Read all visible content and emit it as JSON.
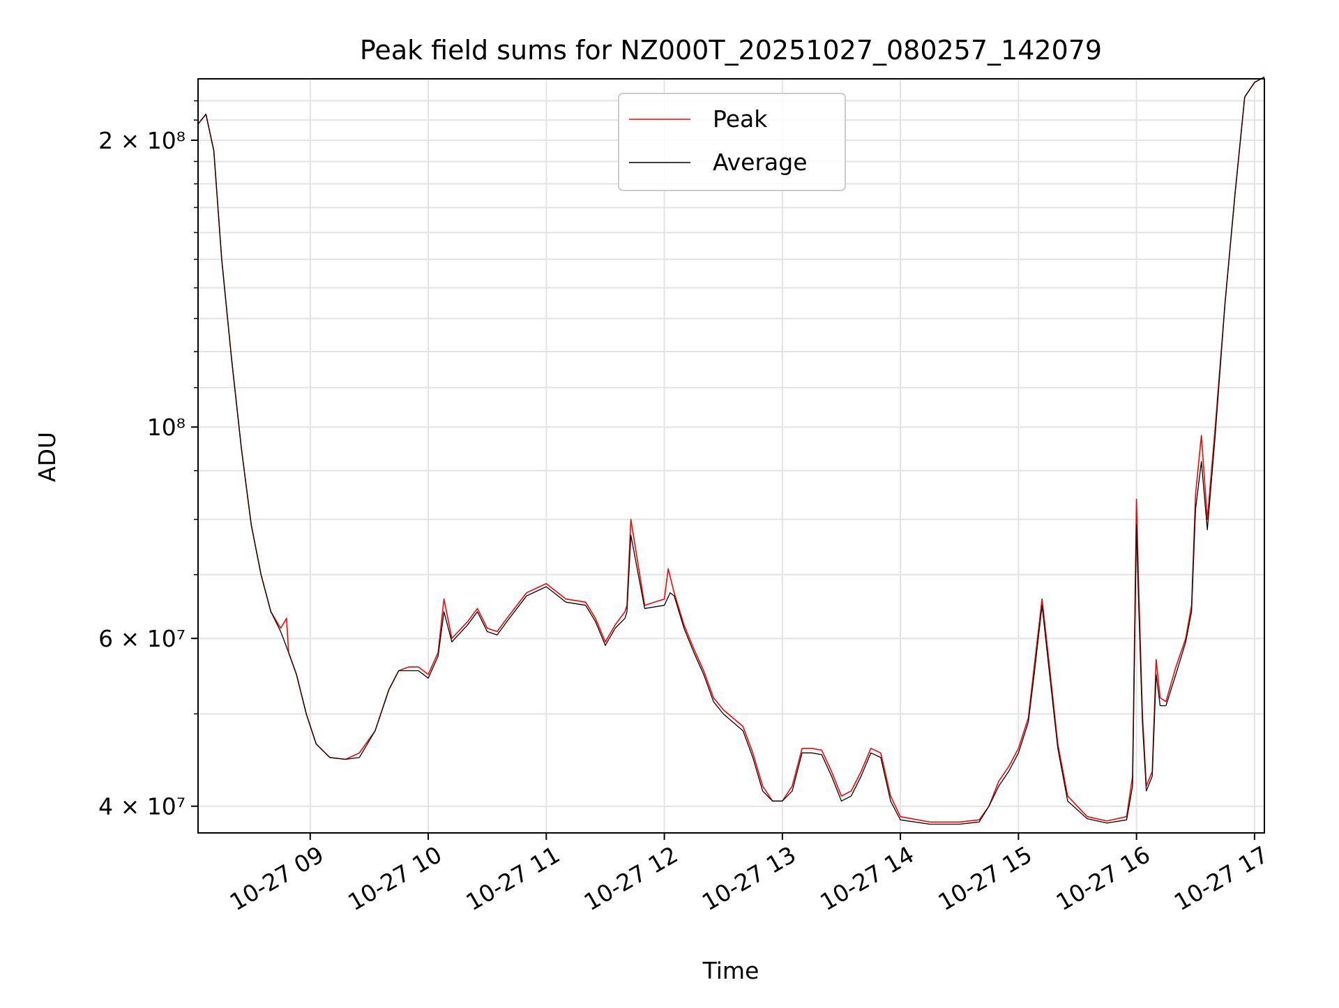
{
  "chart_data": {
    "type": "line",
    "title": "Peak field sums for NZ000T_20251027_080257_142079",
    "xlabel": "Time",
    "ylabel": "ADU",
    "yscale": "log",
    "ylim": [
      37500000,
      232000000
    ],
    "xlim": [
      "2025-10-27 08:03",
      "2025-10-27 17:05"
    ],
    "x_ticks": [
      "10-27 09",
      "10-27 10",
      "10-27 11",
      "10-27 12",
      "10-27 13",
      "10-27 14",
      "10-27 15",
      "10-27 16",
      "10-27 17"
    ],
    "y_tick_labels": [
      "4 × 10⁷",
      "6 × 10⁷",
      "10⁸",
      "2 × 10⁸"
    ],
    "y_tick_values": [
      40000000,
      60000000,
      100000000,
      200000000
    ],
    "grid": true,
    "legend_position": "upper center",
    "series": [
      {
        "name": "Peak",
        "color": "#ff0000",
        "x": [
          "2025-10-27 08:03",
          "2025-10-27 08:07",
          "2025-10-27 08:11",
          "2025-10-27 08:15",
          "2025-10-27 08:20",
          "2025-10-27 08:25",
          "2025-10-27 08:30",
          "2025-10-27 08:35",
          "2025-10-27 08:40",
          "2025-10-27 08:45",
          "2025-10-27 08:48",
          "2025-10-27 08:49",
          "2025-10-27 08:53",
          "2025-10-27 08:58",
          "2025-10-27 09:03",
          "2025-10-27 09:10",
          "2025-10-27 09:18",
          "2025-10-27 09:25",
          "2025-10-27 09:33",
          "2025-10-27 09:40",
          "2025-10-27 09:45",
          "2025-10-27 09:50",
          "2025-10-27 09:55",
          "2025-10-27 10:00",
          "2025-10-27 10:05",
          "2025-10-27 10:08",
          "2025-10-27 10:12",
          "2025-10-27 10:20",
          "2025-10-27 10:25",
          "2025-10-27 10:30",
          "2025-10-27 10:35",
          "2025-10-27 10:40",
          "2025-10-27 10:50",
          "2025-10-27 11:00",
          "2025-10-27 11:10",
          "2025-10-27 11:20",
          "2025-10-27 11:25",
          "2025-10-27 11:30",
          "2025-10-27 11:35",
          "2025-10-27 11:40",
          "2025-10-27 11:41",
          "2025-10-27 11:43",
          "2025-10-27 11:50",
          "2025-10-27 12:00",
          "2025-10-27 12:02",
          "2025-10-27 12:05",
          "2025-10-27 12:10",
          "2025-10-27 12:15",
          "2025-10-27 12:20",
          "2025-10-27 12:25",
          "2025-10-27 12:30",
          "2025-10-27 12:40",
          "2025-10-27 12:45",
          "2025-10-27 12:50",
          "2025-10-27 12:55",
          "2025-10-27 13:00",
          "2025-10-27 13:05",
          "2025-10-27 13:10",
          "2025-10-27 13:15",
          "2025-10-27 13:20",
          "2025-10-27 13:25",
          "2025-10-27 13:30",
          "2025-10-27 13:35",
          "2025-10-27 13:40",
          "2025-10-27 13:45",
          "2025-10-27 13:50",
          "2025-10-27 13:55",
          "2025-10-27 14:00",
          "2025-10-27 14:15",
          "2025-10-27 14:30",
          "2025-10-27 14:40",
          "2025-10-27 14:45",
          "2025-10-27 14:50",
          "2025-10-27 14:55",
          "2025-10-27 15:00",
          "2025-10-27 15:05",
          "2025-10-27 15:08",
          "2025-10-27 15:12",
          "2025-10-27 15:15",
          "2025-10-27 15:20",
          "2025-10-27 15:25",
          "2025-10-27 15:35",
          "2025-10-27 15:45",
          "2025-10-27 15:55",
          "2025-10-27 15:58",
          "2025-10-27 16:00",
          "2025-10-27 16:01",
          "2025-10-27 16:03",
          "2025-10-27 16:05",
          "2025-10-27 16:08",
          "2025-10-27 16:10",
          "2025-10-27 16:12",
          "2025-10-27 16:15",
          "2025-10-27 16:20",
          "2025-10-27 16:25",
          "2025-10-27 16:28",
          "2025-10-27 16:30",
          "2025-10-27 16:33",
          "2025-10-27 16:36",
          "2025-10-27 16:40",
          "2025-10-27 16:45",
          "2025-10-27 16:50",
          "2025-10-27 16:55",
          "2025-10-27 17:00",
          "2025-10-27 17:05"
        ],
        "values": [
          208000000,
          213000000,
          195000000,
          150000000,
          118000000,
          95000000,
          79000000,
          70000000,
          64000000,
          61500000,
          63000000,
          58000000,
          55000000,
          50000000,
          46500000,
          45000000,
          44800000,
          45500000,
          48000000,
          53000000,
          55500000,
          56000000,
          56000000,
          55000000,
          58000000,
          66000000,
          60000000,
          62500000,
          64500000,
          61500000,
          61000000,
          63000000,
          67000000,
          68500000,
          66000000,
          65500000,
          63000000,
          59500000,
          62000000,
          64000000,
          65000000,
          80000000,
          65000000,
          66000000,
          71000000,
          67000000,
          62000000,
          58500000,
          55500000,
          52000000,
          50500000,
          48500000,
          45500000,
          42000000,
          40500000,
          40500000,
          42000000,
          46000000,
          46000000,
          45800000,
          43500000,
          41000000,
          41500000,
          43500000,
          46000000,
          45500000,
          41000000,
          39000000,
          38500000,
          38500000,
          38700000,
          40000000,
          42500000,
          44000000,
          46000000,
          49500000,
          56000000,
          66000000,
          58000000,
          46500000,
          41000000,
          39000000,
          38600000,
          39000000,
          43000000,
          84000000,
          69000000,
          50000000,
          42000000,
          43500000,
          57000000,
          52000000,
          51500000,
          56000000,
          60000000,
          65000000,
          85000000,
          98000000,
          80000000,
          100000000,
          135000000,
          175000000,
          222000000,
          230000000,
          233000000
        ]
      },
      {
        "name": "Average",
        "color": "#000000",
        "x": [
          "2025-10-27 08:03",
          "2025-10-27 08:07",
          "2025-10-27 08:11",
          "2025-10-27 08:15",
          "2025-10-27 08:20",
          "2025-10-27 08:25",
          "2025-10-27 08:30",
          "2025-10-27 08:35",
          "2025-10-27 08:40",
          "2025-10-27 08:45",
          "2025-10-27 08:49",
          "2025-10-27 08:53",
          "2025-10-27 08:58",
          "2025-10-27 09:03",
          "2025-10-27 09:10",
          "2025-10-27 09:18",
          "2025-10-27 09:25",
          "2025-10-27 09:33",
          "2025-10-27 09:40",
          "2025-10-27 09:45",
          "2025-10-27 09:50",
          "2025-10-27 09:55",
          "2025-10-27 10:00",
          "2025-10-27 10:05",
          "2025-10-27 10:08",
          "2025-10-27 10:12",
          "2025-10-27 10:20",
          "2025-10-27 10:25",
          "2025-10-27 10:30",
          "2025-10-27 10:35",
          "2025-10-27 10:40",
          "2025-10-27 10:50",
          "2025-10-27 11:00",
          "2025-10-27 11:10",
          "2025-10-27 11:20",
          "2025-10-27 11:25",
          "2025-10-27 11:30",
          "2025-10-27 11:35",
          "2025-10-27 11:40",
          "2025-10-27 11:41",
          "2025-10-27 11:43",
          "2025-10-27 11:50",
          "2025-10-27 12:00",
          "2025-10-27 12:03",
          "2025-10-27 12:05",
          "2025-10-27 12:10",
          "2025-10-27 12:15",
          "2025-10-27 12:20",
          "2025-10-27 12:25",
          "2025-10-27 12:30",
          "2025-10-27 12:40",
          "2025-10-27 12:45",
          "2025-10-27 12:50",
          "2025-10-27 12:55",
          "2025-10-27 13:00",
          "2025-10-27 13:05",
          "2025-10-27 13:10",
          "2025-10-27 13:15",
          "2025-10-27 13:20",
          "2025-10-27 13:25",
          "2025-10-27 13:30",
          "2025-10-27 13:35",
          "2025-10-27 13:40",
          "2025-10-27 13:45",
          "2025-10-27 13:50",
          "2025-10-27 13:55",
          "2025-10-27 14:00",
          "2025-10-27 14:15",
          "2025-10-27 14:30",
          "2025-10-27 14:40",
          "2025-10-27 14:45",
          "2025-10-27 14:50",
          "2025-10-27 14:55",
          "2025-10-27 15:00",
          "2025-10-27 15:05",
          "2025-10-27 15:08",
          "2025-10-27 15:12",
          "2025-10-27 15:15",
          "2025-10-27 15:20",
          "2025-10-27 15:25",
          "2025-10-27 15:35",
          "2025-10-27 15:45",
          "2025-10-27 15:55",
          "2025-10-27 15:58",
          "2025-10-27 16:00",
          "2025-10-27 16:01",
          "2025-10-27 16:03",
          "2025-10-27 16:05",
          "2025-10-27 16:08",
          "2025-10-27 16:10",
          "2025-10-27 16:12",
          "2025-10-27 16:15",
          "2025-10-27 16:20",
          "2025-10-27 16:25",
          "2025-10-27 16:28",
          "2025-10-27 16:30",
          "2025-10-27 16:33",
          "2025-10-27 16:36",
          "2025-10-27 16:40",
          "2025-10-27 16:45",
          "2025-10-27 16:50",
          "2025-10-27 16:55",
          "2025-10-27 17:00",
          "2025-10-27 17:05"
        ],
        "values": [
          208000000,
          213000000,
          195000000,
          150000000,
          118000000,
          95000000,
          79000000,
          70000000,
          64000000,
          61000000,
          58000000,
          55000000,
          50000000,
          46500000,
          45000000,
          44800000,
          45000000,
          48000000,
          53000000,
          55500000,
          55500000,
          55500000,
          54500000,
          57500000,
          64000000,
          59500000,
          62000000,
          64000000,
          61000000,
          60500000,
          62500000,
          66500000,
          68000000,
          65500000,
          65000000,
          62500000,
          59000000,
          61500000,
          63000000,
          64000000,
          77000000,
          64500000,
          65000000,
          67000000,
          66500000,
          61500000,
          58000000,
          55000000,
          51500000,
          50000000,
          48000000,
          45000000,
          41500000,
          40500000,
          40500000,
          41500000,
          45500000,
          45500000,
          45300000,
          43000000,
          40500000,
          41000000,
          43000000,
          45500000,
          45000000,
          40500000,
          38700000,
          38300000,
          38300000,
          38500000,
          40000000,
          42000000,
          43500000,
          45500000,
          49000000,
          55000000,
          65000000,
          57000000,
          46000000,
          40500000,
          38800000,
          38400000,
          38700000,
          42000000,
          79000000,
          66000000,
          49000000,
          41500000,
          43000000,
          55000000,
          51000000,
          51000000,
          55000000,
          59500000,
          64000000,
          82000000,
          92000000,
          78000000,
          98000000,
          135000000,
          175000000,
          222000000,
          230000000,
          233000000
        ]
      }
    ]
  }
}
